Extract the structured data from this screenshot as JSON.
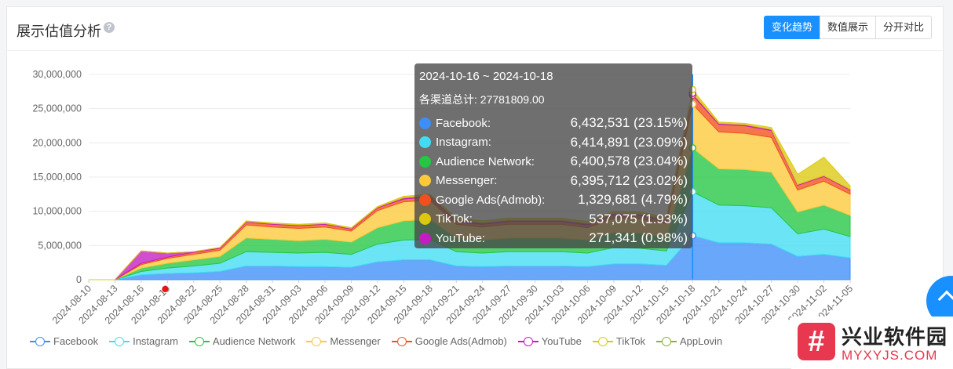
{
  "header": {
    "title": "展示估值分析",
    "help_icon": "question-circle-icon",
    "buttons": [
      "变化趋势",
      "数值展示",
      "分开对比"
    ],
    "active_button": "变化趋势"
  },
  "tooltip": {
    "range": "2024-10-16 ~ 2024-10-18",
    "total": "各渠道总计: 27781809.00",
    "rows": [
      {
        "name": "Facebook:",
        "value": "6,432,531 (23.15%)",
        "color": "#3d8ef8"
      },
      {
        "name": "Instagram:",
        "value": "6,414,891 (23.09%)",
        "color": "#41dcf2"
      },
      {
        "name": "Audience Network:",
        "value": "6,400,578 (23.04%)",
        "color": "#24c744"
      },
      {
        "name": "Messenger:",
        "value": "6,395,712 (23.02%)",
        "color": "#fcc93a"
      },
      {
        "name": "Google Ads(Admob):",
        "value": "1,329,681 (4.79%)",
        "color": "#f1501d"
      },
      {
        "name": "TikTok:",
        "value": "537,075 (1.93%)",
        "color": "#dcc90f"
      },
      {
        "name": "YouTube:",
        "value": "271,341 (0.98%)",
        "color": "#c41cc0"
      }
    ]
  },
  "chart_data": {
    "type": "area",
    "stacked": true,
    "ylim": [
      0,
      30000000
    ],
    "yticks": [
      "30,000,000",
      "25,000,000",
      "20,000,000",
      "15,000,000",
      "10,000,000",
      "5,000,000",
      "0"
    ],
    "x": [
      "2024-08-10",
      "2024-08-13",
      "2024-08-16",
      "2024-08-19",
      "2024-08-22",
      "2024-08-25",
      "2024-08-28",
      "2024-08-31",
      "2024-09-03",
      "2024-09-06",
      "2024-09-09",
      "2024-09-12",
      "2024-09-15",
      "2024-09-18",
      "2024-09-21",
      "2024-09-24",
      "2024-09-27",
      "2024-09-30",
      "2024-10-03",
      "2024-10-06",
      "2024-10-09",
      "2024-10-12",
      "2024-10-15",
      "2024-10-18",
      "2024-10-21",
      "2024-10-24",
      "2024-10-27",
      "2024-10-30",
      "2024-11-02",
      "2024-11-05"
    ],
    "xtick_labels": [
      "2024-08-10",
      "2024-08-13",
      "2024-08-16",
      "2024-08-19",
      "2024-08-22",
      "2024-08-25",
      "2024-08-28",
      "2024-08-31",
      "2024-09-03",
      "2024-09-06",
      "2024-09-09",
      "2024-09-12",
      "2024-09-15",
      "2024-09-18",
      "2024-09-21",
      "2024-09-24",
      "2024-09-27",
      "2024-09-30",
      "2024-10-03",
      "2024-10-06",
      "2024-10-09",
      "2024-10-12",
      "2024-10-15",
      "2024-10-18",
      "2024-10-21",
      "2024-10-24",
      "2024-10-27",
      "2024-10-30",
      "2024-11-02",
      "2024-11-05"
    ],
    "series": [
      {
        "name": "Facebook",
        "color": "#3d8ef8",
        "values": [
          0,
          0,
          700000,
          900000,
          1000000,
          1200000,
          2000000,
          2000000,
          1900000,
          1900000,
          1800000,
          2600000,
          2900000,
          2900000,
          2000000,
          1900000,
          2000000,
          2000000,
          2000000,
          1900000,
          2300000,
          2300000,
          2100000,
          6432531,
          5400000,
          5400000,
          5200000,
          3400000,
          3700000,
          3200000
        ]
      },
      {
        "name": "Instagram",
        "color": "#41dcf2",
        "values": [
          0,
          0,
          500000,
          800000,
          1000000,
          1200000,
          2100000,
          2000000,
          2000000,
          2100000,
          1900000,
          2600000,
          2900000,
          3000000,
          2100000,
          2000000,
          2100000,
          2100000,
          2100000,
          2000000,
          2400000,
          2300000,
          2100000,
          6414891,
          5500000,
          5400000,
          5300000,
          3300000,
          3700000,
          3100000
        ]
      },
      {
        "name": "Audience Network",
        "color": "#24c744",
        "values": [
          0,
          0,
          500000,
          700000,
          900000,
          1000000,
          2000000,
          1900000,
          1800000,
          1900000,
          1800000,
          2400000,
          2800000,
          2900000,
          2000000,
          1900000,
          2000000,
          2000000,
          2000000,
          1900000,
          2200000,
          2200000,
          2000000,
          6400578,
          5300000,
          5300000,
          5200000,
          3200000,
          3500000,
          3100000
        ]
      },
      {
        "name": "Messenger",
        "color": "#fcc93a",
        "values": [
          0,
          0,
          500000,
          700000,
          800000,
          900000,
          1900000,
          1800000,
          1800000,
          1800000,
          1600000,
          2500000,
          2800000,
          2800000,
          2000000,
          1900000,
          2000000,
          2000000,
          2000000,
          1800000,
          2100000,
          2100000,
          2000000,
          6395712,
          5400000,
          5300000,
          5100000,
          3200000,
          3500000,
          3100000
        ]
      },
      {
        "name": "Google Ads(Admob)",
        "color": "#f1501d",
        "values": [
          0,
          0,
          200000,
          200000,
          300000,
          300000,
          400000,
          400000,
          400000,
          400000,
          300000,
          400000,
          400000,
          500000,
          400000,
          400000,
          400000,
          400000,
          400000,
          400000,
          500000,
          500000,
          400000,
          1329681,
          1100000,
          1100000,
          1000000,
          700000,
          700000,
          600000
        ]
      },
      {
        "name": "YouTube",
        "color": "#c41cc0",
        "values": [
          0,
          0,
          1800000,
          600000,
          100000,
          100000,
          100000,
          100000,
          100000,
          100000,
          100000,
          100000,
          200000,
          200000,
          200000,
          200000,
          200000,
          200000,
          200000,
          200000,
          200000,
          200000,
          200000,
          271341,
          150000,
          150000,
          150000,
          100000,
          100000,
          100000
        ]
      },
      {
        "name": "TikTok",
        "color": "#dcc90f",
        "values": [
          0,
          0,
          0,
          0,
          0,
          0,
          100000,
          100000,
          100000,
          100000,
          100000,
          100000,
          200000,
          200000,
          300000,
          300000,
          300000,
          300000,
          300000,
          300000,
          300000,
          300000,
          300000,
          537075,
          200000,
          200000,
          300000,
          1500000,
          2700000,
          500000
        ]
      },
      {
        "name": "AppLovin",
        "color": "#8fb22f",
        "values": [
          0,
          0,
          0,
          0,
          0,
          0,
          0,
          0,
          0,
          0,
          0,
          0,
          0,
          0,
          0,
          0,
          0,
          0,
          0,
          0,
          0,
          0,
          0,
          0,
          0,
          0,
          0,
          0,
          0,
          0
        ]
      }
    ],
    "highlight_x": "2024-10-18",
    "legend_position": "bottom",
    "grid": true
  },
  "watermark": {
    "logo_char": "#",
    "cn": "兴业软件园",
    "en": "MYXYJS.COM"
  }
}
